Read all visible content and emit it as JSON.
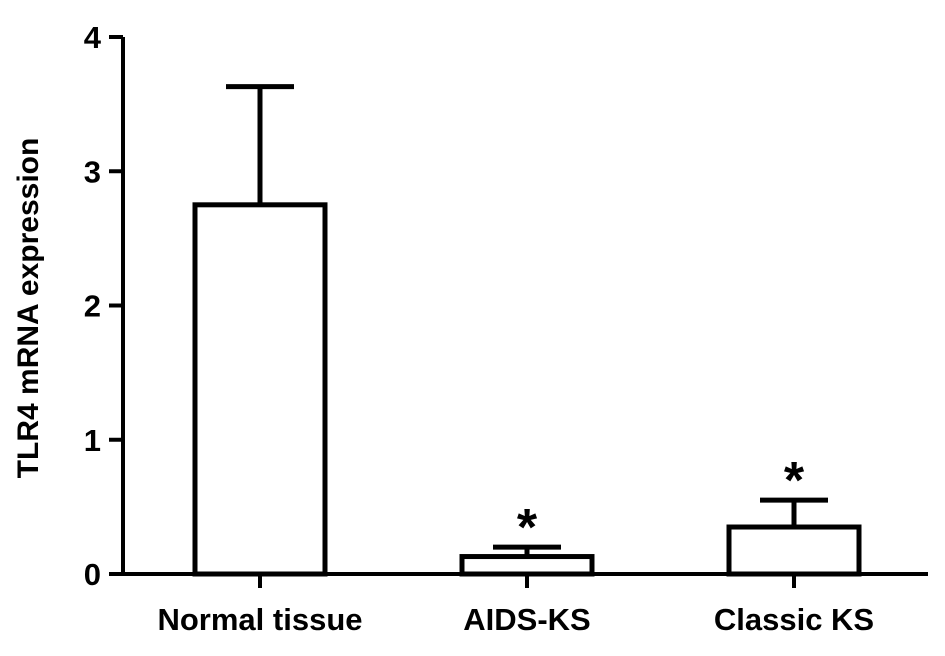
{
  "chart_data": {
    "type": "bar",
    "ylabel": "TLR4 mRNA expression",
    "categories": [
      "Normal tissue",
      "AIDS-KS",
      "Classic KS"
    ],
    "values": [
      2.75,
      0.13,
      0.35
    ],
    "error": [
      0.88,
      0.07,
      0.2
    ],
    "annotations": [
      "",
      "*",
      "*"
    ],
    "ylim": [
      0,
      4
    ],
    "yticks": [
      0,
      1,
      2,
      3,
      4
    ],
    "grid": false,
    "colors": {
      "bar_fill": "#ffffff",
      "stroke": "#000000"
    }
  }
}
